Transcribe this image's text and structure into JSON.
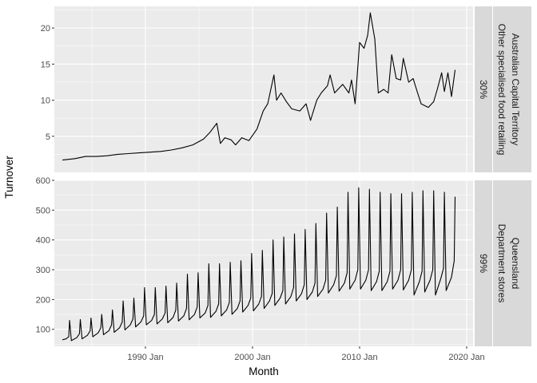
{
  "chart_data": [
    {
      "type": "line",
      "facet": [
        "30%",
        "Australian Capital Territory",
        "Other specialised food retailing"
      ],
      "ylim": [
        0,
        23
      ],
      "yticks": [
        5,
        10,
        15,
        20
      ],
      "points": [
        [
          "1982-04",
          1.7
        ],
        [
          "1983-06",
          1.9
        ],
        [
          "1984-06",
          2.2
        ],
        [
          "1985-06",
          2.2
        ],
        [
          "1986-06",
          2.3
        ],
        [
          "1987-06",
          2.5
        ],
        [
          "1988-06",
          2.6
        ],
        [
          "1989-06",
          2.7
        ],
        [
          "1990-06",
          2.8
        ],
        [
          "1991-06",
          2.9
        ],
        [
          "1992-06",
          3.1
        ],
        [
          "1993-06",
          3.4
        ],
        [
          "1994-06",
          3.8
        ],
        [
          "1995-06",
          4.6
        ],
        [
          "1996-01",
          5.5
        ],
        [
          "1996-09",
          6.8
        ],
        [
          "1997-01",
          4.0
        ],
        [
          "1997-06",
          4.8
        ],
        [
          "1998-01",
          4.5
        ],
        [
          "1998-06",
          3.8
        ],
        [
          "1999-01",
          4.8
        ],
        [
          "1999-09",
          4.4
        ],
        [
          "2000-06",
          6.0
        ],
        [
          "2001-01",
          8.5
        ],
        [
          "2001-06",
          9.5
        ],
        [
          "2002-01",
          13.5
        ],
        [
          "2002-04",
          10.0
        ],
        [
          "2002-09",
          11.0
        ],
        [
          "2003-03",
          9.8
        ],
        [
          "2003-09",
          8.8
        ],
        [
          "2004-06",
          8.5
        ],
        [
          "2005-01",
          9.5
        ],
        [
          "2005-06",
          7.2
        ],
        [
          "2006-01",
          10.0
        ],
        [
          "2006-06",
          11.0
        ],
        [
          "2007-01",
          12.0
        ],
        [
          "2007-04",
          13.5
        ],
        [
          "2007-09",
          11.0
        ],
        [
          "2008-06",
          12.2
        ],
        [
          "2009-01",
          11.0
        ],
        [
          "2009-04",
          12.8
        ],
        [
          "2009-08",
          9.5
        ],
        [
          "2010-01",
          18.0
        ],
        [
          "2010-06",
          17.2
        ],
        [
          "2010-10",
          19.0
        ],
        [
          "2011-01",
          22.1
        ],
        [
          "2011-06",
          18.5
        ],
        [
          "2011-10",
          11.0
        ],
        [
          "2012-04",
          11.5
        ],
        [
          "2012-09",
          11.0
        ],
        [
          "2013-01",
          16.3
        ],
        [
          "2013-06",
          13.0
        ],
        [
          "2013-11",
          12.8
        ],
        [
          "2014-02",
          15.8
        ],
        [
          "2014-08",
          12.5
        ],
        [
          "2015-01",
          13.0
        ],
        [
          "2015-06",
          11.0
        ],
        [
          "2015-10",
          9.5
        ],
        [
          "2016-06",
          9.0
        ],
        [
          "2016-12",
          9.8
        ],
        [
          "2017-04",
          11.5
        ],
        [
          "2017-09",
          13.8
        ],
        [
          "2017-12",
          11.2
        ],
        [
          "2018-04",
          13.8
        ],
        [
          "2018-08",
          10.5
        ],
        [
          "2018-12",
          14.2
        ]
      ]
    },
    {
      "type": "line",
      "facet": [
        "99%",
        "Queensland",
        "Department stores"
      ],
      "ylim": [
        43,
        600
      ],
      "yticks": [
        100,
        200,
        300,
        400,
        500,
        600
      ],
      "points": [
        [
          "1982-04",
          65
        ],
        [
          "1982-08",
          68
        ],
        [
          "1982-11",
          75
        ],
        [
          "1982-12",
          130
        ],
        [
          "1983-02",
          62
        ],
        [
          "1983-08",
          72
        ],
        [
          "1983-11",
          85
        ],
        [
          "1983-12",
          133
        ],
        [
          "1984-02",
          68
        ],
        [
          "1984-08",
          80
        ],
        [
          "1984-11",
          95
        ],
        [
          "1984-12",
          138
        ],
        [
          "1985-02",
          75
        ],
        [
          "1985-08",
          88
        ],
        [
          "1985-11",
          105
        ],
        [
          "1985-12",
          150
        ],
        [
          "1986-02",
          82
        ],
        [
          "1986-08",
          95
        ],
        [
          "1986-11",
          115
        ],
        [
          "1986-12",
          165
        ],
        [
          "1987-02",
          90
        ],
        [
          "1987-08",
          105
        ],
        [
          "1987-11",
          125
        ],
        [
          "1987-12",
          195
        ],
        [
          "1988-02",
          98
        ],
        [
          "1988-08",
          115
        ],
        [
          "1988-11",
          135
        ],
        [
          "1988-12",
          205
        ],
        [
          "1989-02",
          108
        ],
        [
          "1989-08",
          125
        ],
        [
          "1989-11",
          145
        ],
        [
          "1989-12",
          240
        ],
        [
          "1990-02",
          115
        ],
        [
          "1990-08",
          130
        ],
        [
          "1990-11",
          150
        ],
        [
          "1990-12",
          240
        ],
        [
          "1991-02",
          118
        ],
        [
          "1991-08",
          135
        ],
        [
          "1991-11",
          155
        ],
        [
          "1991-12",
          245
        ],
        [
          "1992-02",
          122
        ],
        [
          "1992-08",
          140
        ],
        [
          "1992-11",
          165
        ],
        [
          "1992-12",
          255
        ],
        [
          "1993-02",
          128
        ],
        [
          "1993-08",
          145
        ],
        [
          "1993-11",
          170
        ],
        [
          "1993-12",
          285
        ],
        [
          "1994-02",
          132
        ],
        [
          "1994-08",
          150
        ],
        [
          "1994-11",
          175
        ],
        [
          "1994-12",
          290
        ],
        [
          "1995-02",
          138
        ],
        [
          "1995-08",
          155
        ],
        [
          "1995-11",
          180
        ],
        [
          "1995-12",
          320
        ],
        [
          "1996-02",
          140
        ],
        [
          "1996-08",
          160
        ],
        [
          "1996-11",
          185
        ],
        [
          "1996-12",
          320
        ],
        [
          "1997-02",
          145
        ],
        [
          "1997-08",
          165
        ],
        [
          "1997-11",
          190
        ],
        [
          "1997-12",
          325
        ],
        [
          "1998-02",
          150
        ],
        [
          "1998-08",
          170
        ],
        [
          "1998-11",
          195
        ],
        [
          "1998-12",
          330
        ],
        [
          "1999-02",
          158
        ],
        [
          "1999-08",
          180
        ],
        [
          "1999-11",
          205
        ],
        [
          "1999-12",
          355
        ],
        [
          "2000-02",
          162
        ],
        [
          "2000-08",
          185
        ],
        [
          "2000-11",
          210
        ],
        [
          "2000-12",
          365
        ],
        [
          "2001-02",
          170
        ],
        [
          "2001-08",
          195
        ],
        [
          "2001-11",
          220
        ],
        [
          "2001-12",
          400
        ],
        [
          "2002-02",
          180
        ],
        [
          "2002-08",
          205
        ],
        [
          "2002-11",
          230
        ],
        [
          "2002-12",
          410
        ],
        [
          "2003-02",
          185
        ],
        [
          "2003-08",
          210
        ],
        [
          "2003-11",
          240
        ],
        [
          "2003-12",
          420
        ],
        [
          "2004-02",
          195
        ],
        [
          "2004-08",
          220
        ],
        [
          "2004-11",
          250
        ],
        [
          "2004-12",
          435
        ],
        [
          "2005-02",
          200
        ],
        [
          "2005-08",
          225
        ],
        [
          "2005-11",
          255
        ],
        [
          "2005-12",
          455
        ],
        [
          "2006-02",
          210
        ],
        [
          "2006-08",
          235
        ],
        [
          "2006-11",
          265
        ],
        [
          "2006-12",
          490
        ],
        [
          "2007-02",
          222
        ],
        [
          "2007-08",
          250
        ],
        [
          "2007-11",
          280
        ],
        [
          "2007-12",
          510
        ],
        [
          "2008-02",
          228
        ],
        [
          "2008-08",
          255
        ],
        [
          "2008-11",
          290
        ],
        [
          "2008-12",
          560
        ],
        [
          "2009-02",
          235
        ],
        [
          "2009-08",
          265
        ],
        [
          "2009-11",
          300
        ],
        [
          "2009-12",
          575
        ],
        [
          "2010-02",
          235
        ],
        [
          "2010-08",
          265
        ],
        [
          "2010-11",
          300
        ],
        [
          "2010-12",
          570
        ],
        [
          "2011-02",
          230
        ],
        [
          "2011-08",
          260
        ],
        [
          "2011-11",
          295
        ],
        [
          "2011-12",
          560
        ],
        [
          "2012-02",
          230
        ],
        [
          "2012-08",
          260
        ],
        [
          "2012-11",
          295
        ],
        [
          "2012-12",
          555
        ],
        [
          "2013-02",
          235
        ],
        [
          "2013-08",
          265
        ],
        [
          "2013-11",
          300
        ],
        [
          "2013-12",
          555
        ],
        [
          "2014-02",
          232
        ],
        [
          "2014-08",
          265
        ],
        [
          "2014-11",
          300
        ],
        [
          "2014-12",
          560
        ],
        [
          "2015-02",
          215
        ],
        [
          "2015-08",
          260
        ],
        [
          "2015-11",
          295
        ],
        [
          "2015-12",
          565
        ],
        [
          "2016-02",
          225
        ],
        [
          "2016-08",
          265
        ],
        [
          "2016-11",
          300
        ],
        [
          "2016-12",
          565
        ],
        [
          "2017-02",
          215
        ],
        [
          "2017-08",
          270
        ],
        [
          "2017-11",
          305
        ],
        [
          "2017-12",
          560
        ],
        [
          "2018-02",
          230
        ],
        [
          "2018-08",
          275
        ],
        [
          "2018-11",
          330
        ],
        [
          "2018-12",
          545
        ]
      ]
    }
  ],
  "xaxis": {
    "label": "Month",
    "ticks": [
      "1990 Jan",
      "2000 Jan",
      "2010 Jan",
      "2020 Jan"
    ],
    "tick_years": [
      1990,
      2000,
      2010,
      2020
    ],
    "minor_years": [
      1985,
      1995,
      2005,
      2015
    ]
  },
  "yaxis": {
    "label": "Turnover"
  },
  "colors": {
    "panel": "#ebebeb",
    "grid": "#ffffff",
    "strip": "#d9d9d9",
    "line": "#000000"
  }
}
